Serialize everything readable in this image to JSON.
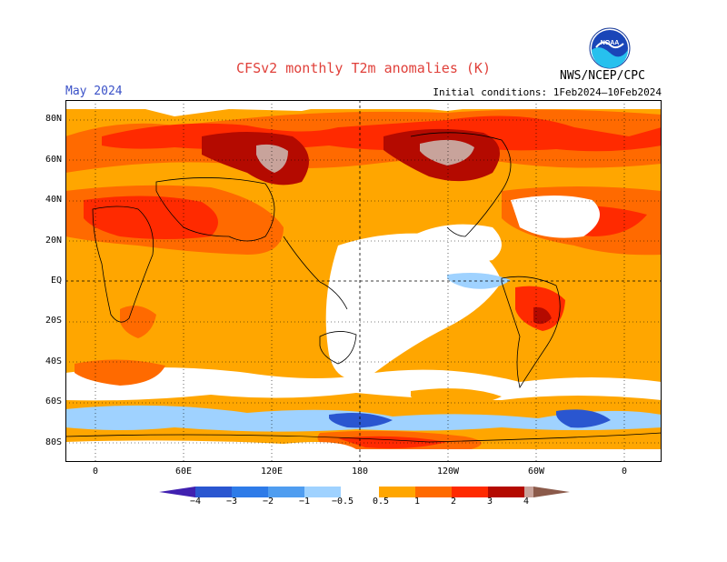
{
  "header": {
    "title": "CFSv2 monthly T2m anomalies (K)",
    "period": "May 2024",
    "init": "Initial conditions: 1Feb2024–10Feb2024",
    "org": "NWS/NCEP/CPC",
    "logo_text": "NOAA"
  },
  "map": {
    "lat_labels": [
      "80N",
      "60N",
      "40N",
      "20N",
      "EQ",
      "20S",
      "40S",
      "60S",
      "80S"
    ],
    "lon_labels": [
      "0",
      "60E",
      "120E",
      "180",
      "120W",
      "60W",
      "0"
    ],
    "grid": "dotted",
    "colors": {
      "ocean_warm": "#ffa600",
      "warm1": "#ff6a00",
      "warm2": "#ff2a00",
      "warm3": "#b40a00",
      "warm4": "#c8a39b",
      "neutral": "#ffffff",
      "cool1": "#9fd2ff",
      "cool2": "#4f9df0",
      "cool3": "#2a56d0"
    }
  },
  "colorbar": {
    "labels": [
      "−4",
      "−3",
      "−2",
      "−1",
      "−0.5",
      "0.5",
      "1",
      "2",
      "3",
      "4"
    ],
    "colors": [
      "#4020b0",
      "#2a56d0",
      "#2e7be8",
      "#4f9df0",
      "#9fd2ff",
      "#ffffff",
      "#ffa600",
      "#ff6a00",
      "#ff2a00",
      "#b40a00",
      "#c8a39b",
      "#8b5a4a"
    ]
  }
}
